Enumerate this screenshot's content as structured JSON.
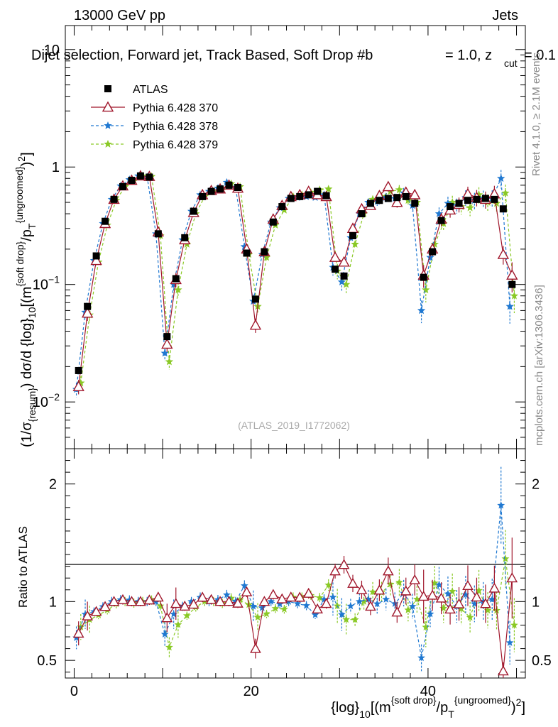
{
  "header": {
    "energy_label": "13000 GeV pp",
    "process_label": "Jets",
    "title": "Dijet selection, Forward jet, Track Based, Soft Drop #b",
    "title_tail": "= 1.0, z",
    "title_sub": "cut",
    "title_end": "= 0.1"
  },
  "side": {
    "rivet_label": "Rivet 4.1.0, ≥ 2.1M events",
    "mcplots_label": "mcplots.cern.ch [arXiv:1306.3436]"
  },
  "watermark": "(ATLAS_2019_I1772062)",
  "legend": [
    {
      "name": "ATLAS",
      "color": "#000000",
      "marker": "square",
      "dash": "solid"
    },
    {
      "name": "Pythia 6.428 370",
      "color": "#a0162b",
      "marker": "triangle",
      "dash": "solid"
    },
    {
      "name": "Pythia 6.428 378",
      "color": "#1f78d1",
      "marker": "star",
      "dash": "dashed"
    },
    {
      "name": "Pythia 6.428 379",
      "color": "#8ac926",
      "marker": "star",
      "dash": "dashed"
    }
  ],
  "chart_data": {
    "type": "scatter",
    "title": "Dijet selection, Forward jet, Track Based, Soft Drop β = 1.0, z_cut = 0.1",
    "xlabel": "{log}_10[(m^{soft drop}/p_T^{ungroomed})^2]",
    "ylabel": "(1/σ_{resum}) dσ/d {log}_10[(m^{soft drop}/p_T^{ungroomed})^2]",
    "ratio_ylabel": "Ratio to ATLAS",
    "xlim": [
      -1,
      51
    ],
    "ylim": [
      0.004,
      16
    ],
    "ratio_ylim": [
      0.35,
      2.3
    ],
    "x_ticks": [
      "0",
      "20",
      "40"
    ],
    "y_ticks": [
      "10^{-2}",
      "10^{-1}",
      "1",
      "10"
    ],
    "ratio_ticks": [
      "0.5",
      "1",
      "2"
    ],
    "x": [
      0.5,
      1.5,
      2.5,
      3.5,
      4.5,
      5.5,
      6.5,
      7.5,
      8.5,
      9.5,
      10.5,
      11.5,
      12.5,
      13.5,
      14.5,
      15.5,
      16.5,
      17.5,
      18.5,
      19.5,
      20.5,
      21.5,
      22.5,
      23.5,
      24.5,
      25.5,
      26.5,
      27.5,
      28.5,
      29.5,
      30.5,
      31.5,
      32.5,
      33.5,
      34.5,
      35.5,
      36.5,
      37.5,
      38.5,
      39.5,
      40.5,
      41.5,
      42.5,
      43.5,
      44.5,
      45.5,
      46.5,
      47.5,
      48.5,
      49.5
    ],
    "series": [
      {
        "name": "ATLAS",
        "values": [
          0.0185,
          0.065,
          0.175,
          0.345,
          0.53,
          0.68,
          0.77,
          0.84,
          0.82,
          0.27,
          0.036,
          0.112,
          0.25,
          0.42,
          0.56,
          0.62,
          0.65,
          0.7,
          0.67,
          0.185,
          0.075,
          0.19,
          0.34,
          0.46,
          0.54,
          0.56,
          0.58,
          0.62,
          0.57,
          0.135,
          0.118,
          0.26,
          0.4,
          0.49,
          0.52,
          0.54,
          0.55,
          0.56,
          0.49,
          0.115,
          0.19,
          0.35,
          0.46,
          0.49,
          0.52,
          0.53,
          0.54,
          0.53,
          0.44,
          0.1
        ]
      },
      {
        "name": "Pythia 6.428 370",
        "values": [
          0.0135,
          0.057,
          0.16,
          0.33,
          0.53,
          0.69,
          0.77,
          0.84,
          0.83,
          0.28,
          0.031,
          0.11,
          0.24,
          0.41,
          0.58,
          0.63,
          0.65,
          0.7,
          0.66,
          0.2,
          0.045,
          0.19,
          0.36,
          0.47,
          0.56,
          0.58,
          0.62,
          0.58,
          0.56,
          0.17,
          0.155,
          0.3,
          0.44,
          0.47,
          0.57,
          0.68,
          0.5,
          0.61,
          0.58,
          0.12,
          0.2,
          0.36,
          0.43,
          0.48,
          0.59,
          0.55,
          0.53,
          0.59,
          0.18,
          0.12
        ]
      },
      {
        "name": "Pythia 6.428 378",
        "values": [
          0.0128,
          0.058,
          0.16,
          0.33,
          0.53,
          0.69,
          0.78,
          0.84,
          0.82,
          0.27,
          0.026,
          0.1,
          0.24,
          0.42,
          0.58,
          0.62,
          0.66,
          0.74,
          0.67,
          0.21,
          0.072,
          0.18,
          0.34,
          0.45,
          0.54,
          0.55,
          0.56,
          0.55,
          0.58,
          0.14,
          0.105,
          0.25,
          0.4,
          0.5,
          0.51,
          0.55,
          0.54,
          0.6,
          0.47,
          0.06,
          0.17,
          0.4,
          0.49,
          0.47,
          0.55,
          0.52,
          0.54,
          0.54,
          0.8,
          0.065
        ]
      },
      {
        "name": "Pythia 6.428 379",
        "values": [
          0.0145,
          0.055,
          0.155,
          0.32,
          0.52,
          0.68,
          0.76,
          0.84,
          0.83,
          0.26,
          0.022,
          0.09,
          0.22,
          0.4,
          0.56,
          0.62,
          0.64,
          0.72,
          0.68,
          0.18,
          0.065,
          0.17,
          0.32,
          0.43,
          0.56,
          0.58,
          0.61,
          0.64,
          0.65,
          0.13,
          0.1,
          0.22,
          0.4,
          0.53,
          0.56,
          0.62,
          0.64,
          0.52,
          0.5,
          0.09,
          0.22,
          0.33,
          0.5,
          0.46,
          0.45,
          0.58,
          0.5,
          0.49,
          0.6,
          0.08
        ]
      }
    ]
  }
}
